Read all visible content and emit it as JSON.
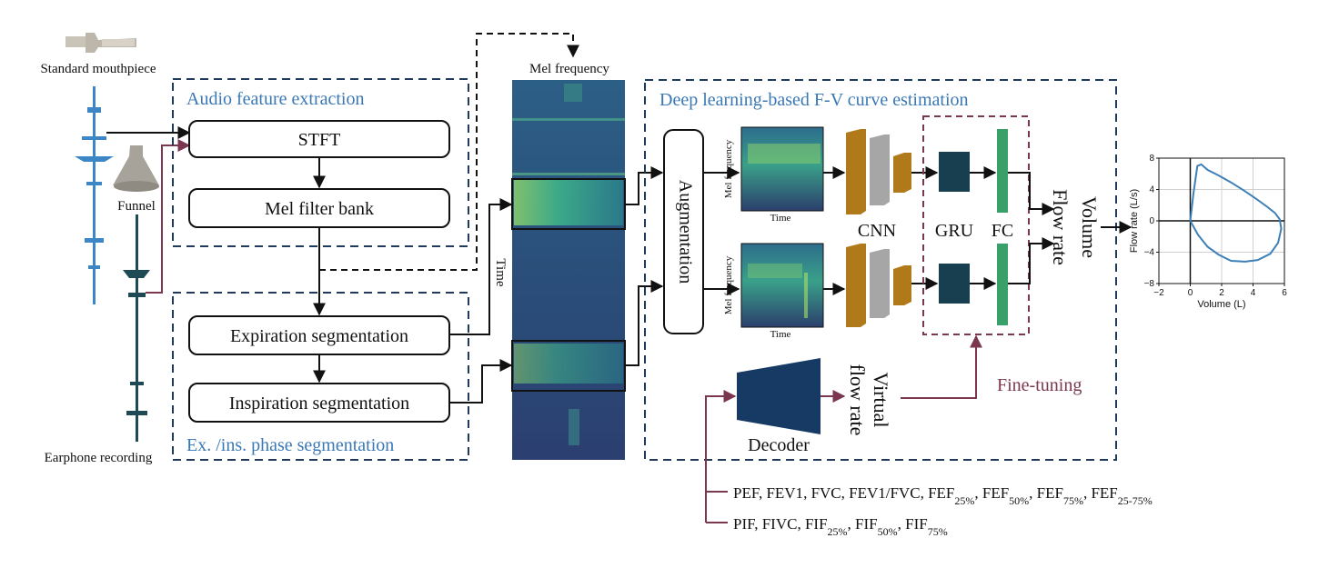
{
  "labels": {
    "mouthpiece": "Standard mouthpiece",
    "funnel": "Funnel",
    "earphone": "Earphone recording",
    "audio_section": "Audio feature extraction",
    "phase_section": "Ex. /ins. phase segmentation",
    "dl_section": "Deep learning-based F-V curve estimation",
    "mel_frequency": "Mel frequency",
    "time": "Time",
    "augmentation": "Augmentation",
    "cnn": "CNN",
    "gru": "GRU",
    "fc": "FC",
    "volume": "Volume",
    "flow_rate": "Flow rate",
    "decoder": "Decoder",
    "virtual_flow_rate_1": "Virtual",
    "virtual_flow_rate_2": "flow rate",
    "fine_tuning": "Fine-tuning",
    "spec_ylabel": "Mel frequency",
    "spec_xlabel": "Time"
  },
  "boxes": {
    "stft": "STFT",
    "mel_filter": "Mel filter bank",
    "expiration": "Expiration segmentation",
    "inspiration": "Inspiration segmentation"
  },
  "metrics": {
    "expiratory": [
      {
        "base": "PEF",
        "sub": ""
      },
      {
        "base": "FEV1",
        "sub": ""
      },
      {
        "base": "FVC",
        "sub": ""
      },
      {
        "base": "FEV1/FVC",
        "sub": ""
      },
      {
        "base": "FEF",
        "sub": "25%"
      },
      {
        "base": "FEF",
        "sub": "50%"
      },
      {
        "base": "FEF",
        "sub": "75%"
      },
      {
        "base": "FEF",
        "sub": "25-75%"
      }
    ],
    "inspiratory": [
      {
        "base": "PIF",
        "sub": ""
      },
      {
        "base": "FIVC",
        "sub": ""
      },
      {
        "base": "FIF",
        "sub": "25%"
      },
      {
        "base": "FIF",
        "sub": "50%"
      },
      {
        "base": "FIF",
        "sub": "75%"
      }
    ]
  },
  "fv_plot": {
    "xlabel": "Volume (L)",
    "ylabel": "Flow rate (L/s)",
    "xticks": [
      -2,
      0,
      2,
      4,
      6
    ],
    "yticks": [
      8,
      4,
      0,
      -4,
      -8
    ],
    "xlim": [
      -2,
      6
    ],
    "ylim": [
      -8,
      8
    ],
    "grid": true
  },
  "colors": {
    "section_dash": "#1f3a5a",
    "blue_text": "#3a78b5",
    "maroon": "#7b3650",
    "cnn_gold": "#b07a1a",
    "cnn_gray": "#a6a6a6",
    "gru_dark": "#173f4f",
    "fc_green": "#3aa06a",
    "decoder_navy": "#173a64",
    "waveform_blue": "#3d86c6",
    "waveform_dark": "#1e4a56",
    "curve_blue": "#3d80b8"
  }
}
